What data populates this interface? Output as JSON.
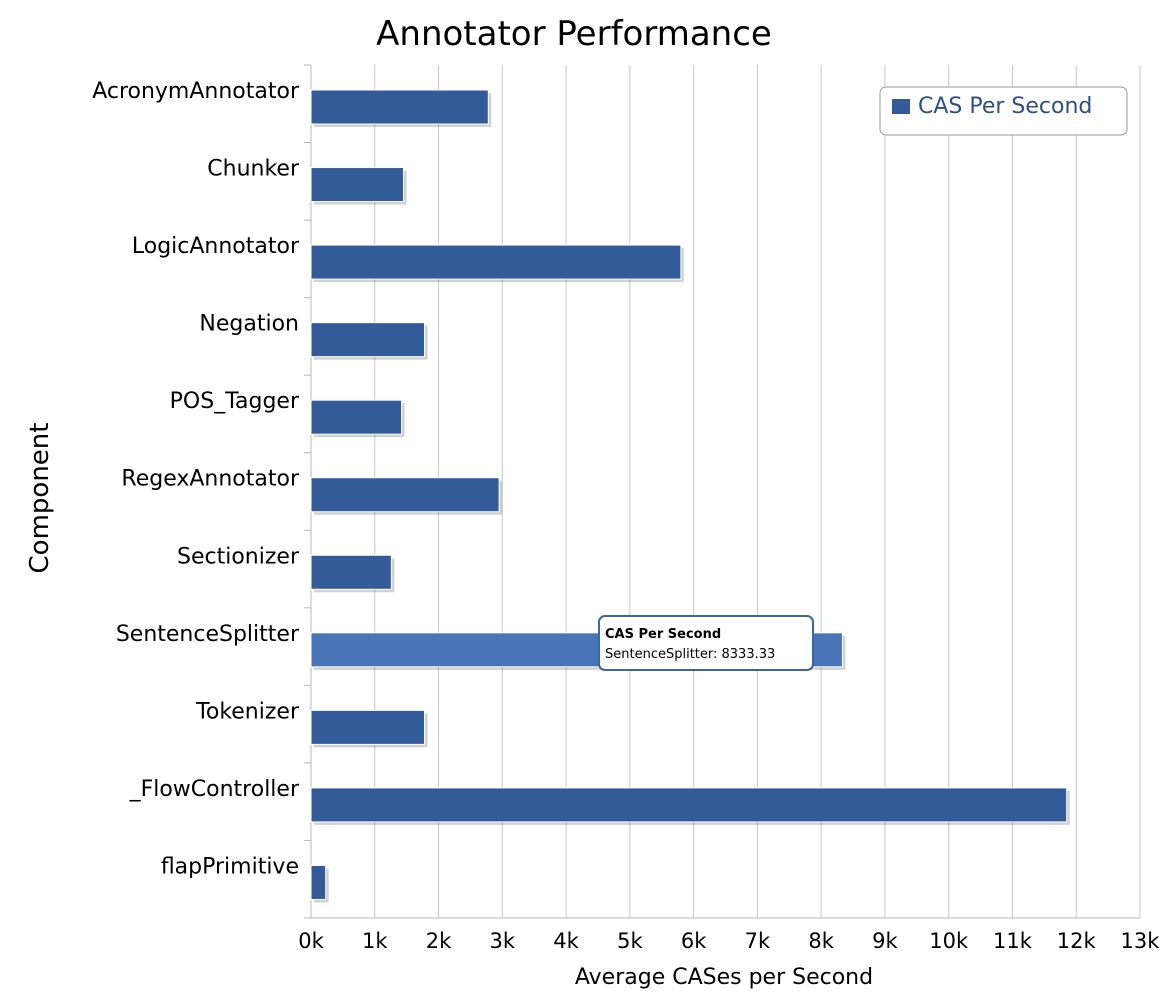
{
  "chart_data": {
    "type": "bar",
    "orientation": "horizontal",
    "title": "Annotator Performance",
    "xlabel": "Average CASes per Second",
    "ylabel": "Component",
    "xlim": [
      0,
      13000
    ],
    "x_ticks": [
      0,
      1000,
      2000,
      3000,
      4000,
      5000,
      6000,
      7000,
      8000,
      9000,
      10000,
      11000,
      12000,
      13000
    ],
    "x_tick_labels": [
      "0k",
      "1k",
      "2k",
      "3k",
      "4k",
      "5k",
      "6k",
      "7k",
      "8k",
      "9k",
      "10k",
      "11k",
      "12k",
      "13k"
    ],
    "grid": "vertical",
    "legend": {
      "position": "top-right",
      "entries": [
        "CAS Per Second"
      ]
    },
    "categories": [
      "AcronymAnnotator",
      "Chunker",
      "LogicAnnotator",
      "Negation",
      "POS_Tagger",
      "RegexAnnotator",
      "Sectionizer",
      "SentenceSplitter",
      "Tokenizer",
      "_FlowController",
      "flapPrimitive"
    ],
    "series": [
      {
        "name": "CAS Per Second",
        "color": "#335b99",
        "highlight_color": "#4a74b8",
        "values": [
          2780,
          1450,
          5800,
          1780,
          1420,
          2950,
          1260,
          8333.33,
          1780,
          11850,
          230
        ]
      }
    ],
    "tooltip": {
      "title": "CAS Per Second",
      "text": "SentenceSplitter: 8333.33",
      "category": "SentenceSplitter"
    }
  }
}
